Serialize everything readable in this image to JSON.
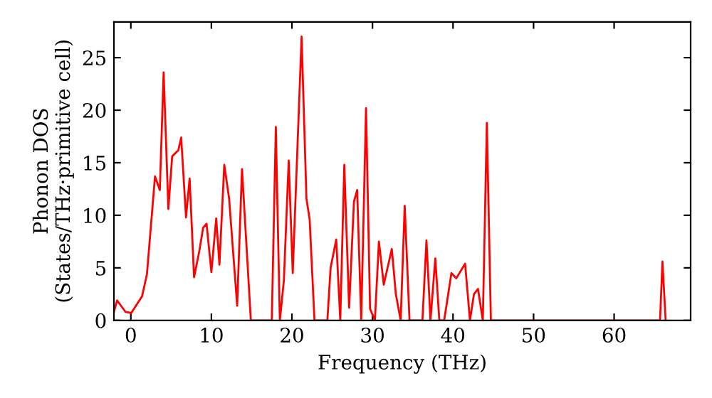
{
  "chart_data": {
    "type": "line",
    "xlabel": "Frequency (THz)",
    "ylabel": "Phonon DOS\n(States/THz·primitive cell)",
    "x": [
      -2.1,
      -1.7,
      -0.65,
      0.05,
      1.4,
      2.0,
      3.0,
      3.6,
      4.07,
      4.66,
      5.13,
      5.9,
      6.25,
      6.85,
      7.3,
      7.85,
      8.5,
      8.97,
      9.4,
      10.0,
      10.6,
      11.0,
      11.6,
      12.2,
      13.2,
      13.8,
      14.9,
      17.5,
      18.0,
      18.5,
      19.0,
      19.6,
      20.1,
      21.2,
      21.8,
      22.2,
      22.8,
      24.4,
      24.8,
      25.5,
      26.0,
      26.5,
      27.1,
      27.7,
      28.1,
      28.6,
      29.2,
      29.7,
      30.3,
      30.8,
      31.4,
      32.4,
      32.9,
      33.5,
      34.0,
      34.6,
      36.2,
      36.7,
      37.2,
      37.8,
      38.3,
      38.9,
      39.8,
      40.4,
      41.5,
      42.1,
      42.6,
      43.1,
      43.7,
      44.2,
      44.7,
      65.7,
      66.0,
      66.4
    ],
    "series": [
      {
        "color": "#ff0000",
        "values": [
          0.8,
          1.9,
          0.8,
          0.7,
          2.3,
          4.4,
          13.7,
          12.4,
          23.6,
          10.6,
          15.6,
          16.2,
          17.4,
          9.8,
          13.5,
          4.1,
          6.6,
          8.8,
          9.2,
          4.6,
          9.7,
          5.3,
          14.8,
          11.6,
          1.4,
          14.4,
          0,
          0,
          18.4,
          0,
          3.8,
          15.2,
          4.5,
          27.0,
          11.6,
          9.6,
          0,
          0,
          5.0,
          7.7,
          0,
          14.8,
          1.2,
          11.3,
          12.4,
          0,
          20.2,
          1.1,
          0,
          7.5,
          3.4,
          6.8,
          2.5,
          0,
          10.9,
          0,
          0,
          7.6,
          0,
          5.9,
          0,
          0,
          4.5,
          4.0,
          5.4,
          0,
          2.5,
          3.0,
          0,
          18.8,
          0,
          0,
          5.6,
          0
        ]
      }
    ],
    "xlim": [
      -2.1,
      69.5
    ],
    "ylim": [
      0,
      28.4
    ],
    "xticks": [
      0,
      10,
      20,
      30,
      40,
      50,
      60
    ],
    "yticks": [
      0,
      5,
      10,
      15,
      20,
      25
    ],
    "grid": false,
    "legend": false,
    "marker": "none",
    "line_style": "solid"
  }
}
